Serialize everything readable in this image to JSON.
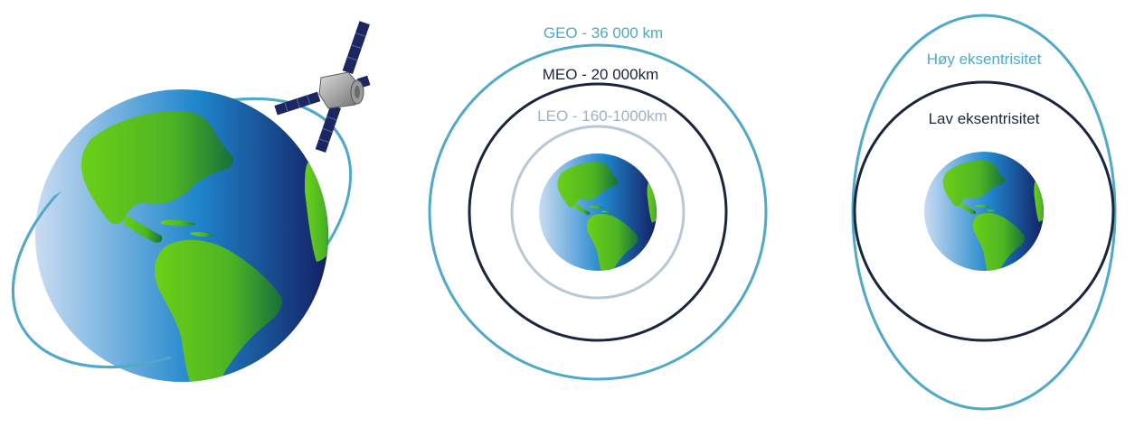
{
  "labels": {
    "geo": "GEO - 36 000 km",
    "meo": "MEO - 20 000km",
    "leo": "LEO - 160-1000km",
    "high_ecc": "Høy eksentrisitet",
    "low_ecc": "Lav eksentrisitet"
  },
  "colors": {
    "geo_orbit": "#4fa9c9",
    "meo_orbit": "#1a2540",
    "leo_orbit": "#b8c8d6",
    "high_ecc_orbit": "#4fa9c9",
    "low_ecc_orbit": "#1a2540",
    "ocean_light": "#c9dcf2",
    "ocean_mid": "#1f86cc",
    "ocean_dark": "#141f63",
    "land_light": "#6ccf18",
    "land_dark": "#17703a"
  },
  "icons": {
    "satellite": "satellite-icon",
    "globe": "globe-icon"
  }
}
